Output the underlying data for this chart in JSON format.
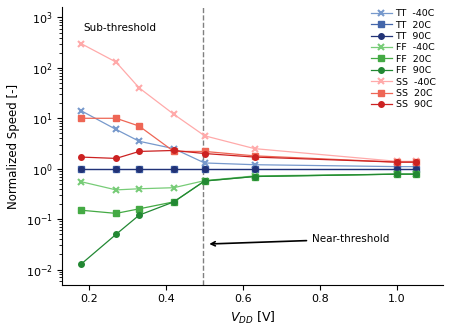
{
  "ylabel": "Normalized Speed [-]",
  "vdd_values": [
    0.18,
    0.27,
    0.33,
    0.42,
    0.5,
    0.63,
    1.0,
    1.05
  ],
  "threshold_line": 0.495,
  "sub_threshold_label": "Sub-threshold",
  "near_threshold_label": "Near-threshold",
  "series": [
    {
      "label": "TT  -40C",
      "color": "#7799cc",
      "marker": "x",
      "values": [
        14.0,
        6.0,
        3.5,
        2.5,
        1.3,
        1.2,
        1.1,
        1.1
      ]
    },
    {
      "label": "TT  20C",
      "color": "#4466aa",
      "marker": "s",
      "values": [
        1.0,
        1.0,
        1.0,
        1.0,
        1.0,
        1.0,
        1.0,
        1.0
      ]
    },
    {
      "label": "TT  90C",
      "color": "#223377",
      "marker": "o",
      "values": [
        1.0,
        1.0,
        1.0,
        1.0,
        1.0,
        1.0,
        1.0,
        1.0
      ]
    },
    {
      "label": "FF  -40C",
      "color": "#77cc77",
      "marker": "x",
      "values": [
        0.55,
        0.38,
        0.4,
        0.42,
        0.58,
        0.72,
        0.78,
        0.78
      ]
    },
    {
      "label": "FF  20C",
      "color": "#44aa44",
      "marker": "s",
      "values": [
        0.15,
        0.13,
        0.16,
        0.22,
        0.57,
        0.7,
        0.78,
        0.78
      ]
    },
    {
      "label": "FF  90C",
      "color": "#228833",
      "marker": "o",
      "values": [
        0.013,
        0.05,
        0.12,
        0.22,
        0.57,
        0.7,
        0.78,
        0.78
      ]
    },
    {
      "label": "SS  -40C",
      "color": "#ffaaaa",
      "marker": "x",
      "values": [
        300.0,
        130.0,
        40.0,
        12.0,
        4.5,
        2.5,
        1.4,
        1.4
      ]
    },
    {
      "label": "SS  20C",
      "color": "#ee6655",
      "marker": "s",
      "values": [
        10.0,
        10.0,
        7.0,
        2.2,
        2.2,
        1.8,
        1.35,
        1.35
      ]
    },
    {
      "label": "SS  90C",
      "color": "#cc2222",
      "marker": "o",
      "values": [
        1.7,
        1.6,
        2.2,
        2.3,
        2.0,
        1.7,
        1.35,
        1.35
      ]
    }
  ]
}
